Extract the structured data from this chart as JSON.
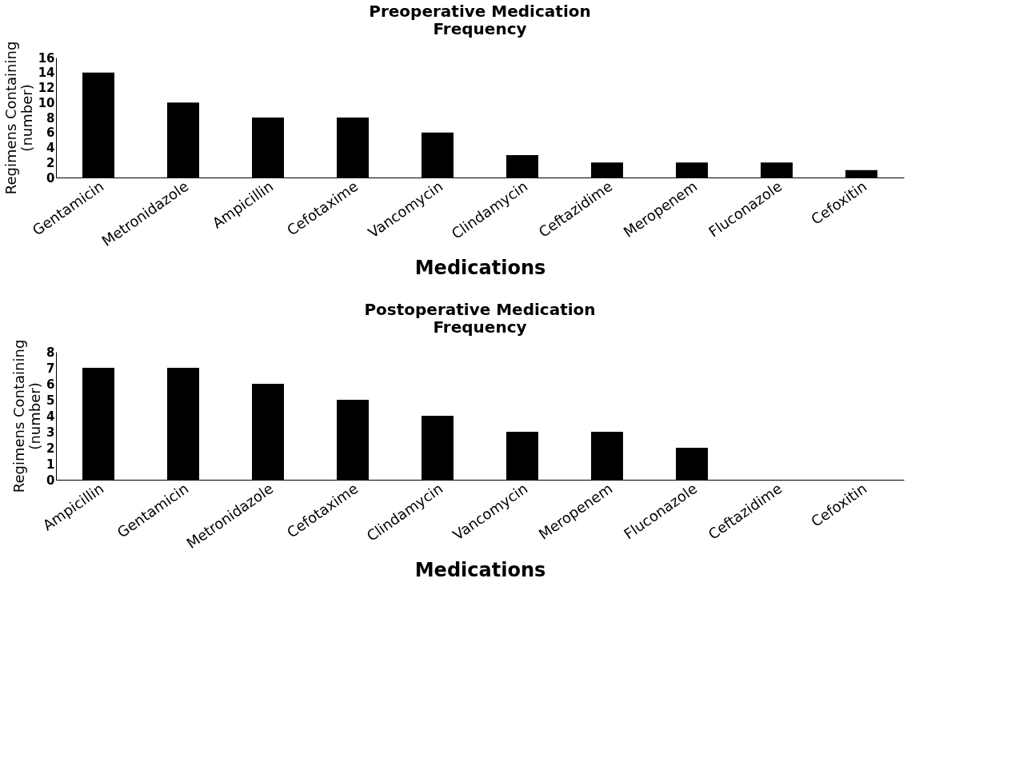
{
  "chart_data": [
    {
      "type": "bar",
      "title": "Preoperative Medication\nFrequency",
      "xlabel": "Medications",
      "ylabel": "Regimens Containing\n(number)",
      "categories": [
        "Gentamicin",
        "Metronidazole",
        "Ampicillin",
        "Cefotaxime",
        "Vancomycin",
        "Clindamycin",
        "Ceftazidime",
        "Meropenem",
        "Fluconazole",
        "Cefoxitin"
      ],
      "series": [
        {
          "color": "#000000",
          "values": [
            14,
            10,
            8,
            8,
            6,
            3,
            2,
            2,
            2,
            1
          ]
        }
      ],
      "ylim": [
        0,
        16
      ],
      "yticks": [
        0,
        2,
        4,
        6,
        8,
        10,
        12,
        14,
        16
      ],
      "grid": false
    },
    {
      "type": "bar",
      "title": "Postoperative Medication\nFrequency",
      "xlabel": "Medications",
      "ylabel": "Regimens Containing\n(number)",
      "categories": [
        "Ampicillin",
        "Gentamicin",
        "Metronidazole",
        "Cefotaxime",
        "Clindamycin",
        "Vancomycin",
        "Meropenem",
        "Fluconazole",
        "Ceftazidime",
        "Cefoxitin"
      ],
      "series": [
        {
          "color": "#000000",
          "values": [
            7,
            7,
            6,
            5,
            4,
            3,
            3,
            2,
            0,
            0
          ]
        }
      ],
      "ylim": [
        0,
        8
      ],
      "yticks": [
        0,
        1,
        2,
        3,
        4,
        5,
        6,
        7,
        8
      ],
      "grid": false
    }
  ]
}
